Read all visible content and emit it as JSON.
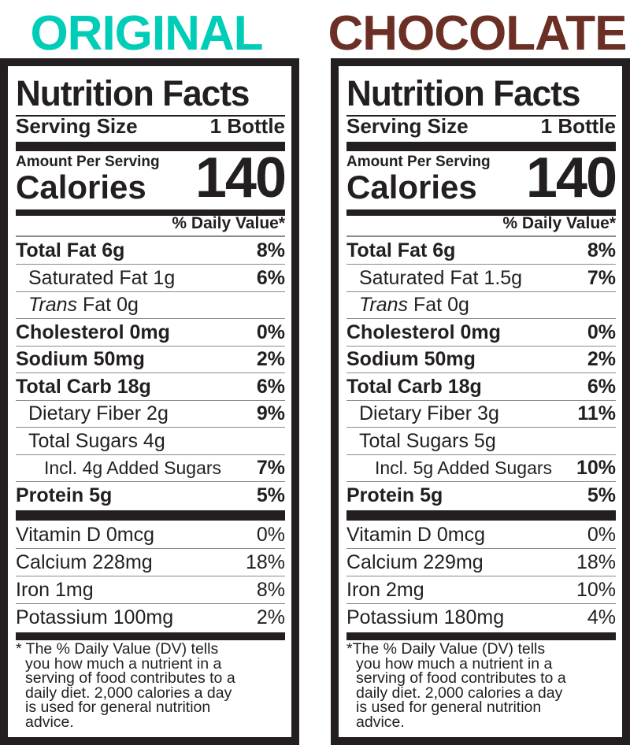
{
  "colors": {
    "original": "#00cdb8",
    "chocolate": "#6b2f26",
    "ink": "#231f20"
  },
  "panels": [
    {
      "flavor": "ORIGINAL",
      "title": "Nutrition Facts",
      "serving_label": "Serving Size",
      "serving_value": "1 Bottle",
      "amount_label": "Amount Per Serving",
      "calories_label": "Calories",
      "calories_value": "140",
      "dv_header": "% Daily Value*",
      "nutrients": [
        {
          "label": "Total Fat 6g",
          "pct": "8%",
          "style": "bold"
        },
        {
          "label": "Saturated Fat 1g",
          "pct": "6%",
          "style": "indent"
        },
        {
          "label_italic": "Trans",
          "label": " Fat 0g",
          "pct": "",
          "style": "indent"
        },
        {
          "label": "Cholesterol 0mg",
          "pct": "0%",
          "style": "bold"
        },
        {
          "label": "Sodium 50mg",
          "pct": "2%",
          "style": "bold"
        },
        {
          "label": "Total Carb 18g",
          "pct": "6%",
          "style": "bold"
        },
        {
          "label": "Dietary Fiber 2g",
          "pct": "9%",
          "style": "indent"
        },
        {
          "label": "Total Sugars 4g",
          "pct": "",
          "style": "indent"
        },
        {
          "label": "Incl. 4g Added Sugars",
          "pct": "7%",
          "style": "indent2"
        },
        {
          "label": "Protein 5g",
          "pct": "5%",
          "style": "bold"
        }
      ],
      "vitamins": [
        {
          "label": "Vitamin D 0mcg",
          "pct": "0%"
        },
        {
          "label": "Calcium 228mg",
          "pct": "18%"
        },
        {
          "label": "Iron 1mg",
          "pct": "8%"
        },
        {
          "label": "Potassium 100mg",
          "pct": "2%"
        }
      ],
      "footnote": [
        "* The % Daily Value (DV) tells",
        "you how much a nutrient in a",
        "serving of food contributes to a",
        "daily diet. 2,000 calories a day",
        "is used for general nutrition",
        "advice."
      ]
    },
    {
      "flavor": "CHOCOLATE",
      "title": "Nutrition Facts",
      "serving_label": "Serving Size",
      "serving_value": "1 Bottle",
      "amount_label": "Amount Per Serving",
      "calories_label": "Calories",
      "calories_value": "140",
      "dv_header": "% Daily Value*",
      "nutrients": [
        {
          "label": "Total Fat 6g",
          "pct": "8%",
          "style": "bold"
        },
        {
          "label": "Saturated Fat 1.5g",
          "pct": "7%",
          "style": "indent"
        },
        {
          "label_italic": "Trans",
          "label": " Fat 0g",
          "pct": "",
          "style": "indent"
        },
        {
          "label": "Cholesterol 0mg",
          "pct": "0%",
          "style": "bold"
        },
        {
          "label": "Sodium 50mg",
          "pct": "2%",
          "style": "bold"
        },
        {
          "label": "Total Carb 18g",
          "pct": "6%",
          "style": "bold"
        },
        {
          "label": "Dietary Fiber 3g",
          "pct": "11%",
          "style": "indent"
        },
        {
          "label": "Total Sugars 5g",
          "pct": "",
          "style": "indent"
        },
        {
          "label": "Incl. 5g Added Sugars",
          "pct": "10%",
          "style": "indent2"
        },
        {
          "label": "Protein 5g",
          "pct": "5%",
          "style": "bold"
        }
      ],
      "vitamins": [
        {
          "label": "Vitamin D 0mcg",
          "pct": "0%"
        },
        {
          "label": "Calcium 229mg",
          "pct": "18%"
        },
        {
          "label": "Iron 2mg",
          "pct": "10%"
        },
        {
          "label": "Potassium 180mg",
          "pct": "4%"
        }
      ],
      "footnote": [
        "*The % Daily Value (DV) tells",
        "you how much a nutrient in a",
        "serving of food contributes to a",
        "daily diet. 2,000 calories a day",
        "is used for general nutrition",
        "advice."
      ]
    }
  ]
}
